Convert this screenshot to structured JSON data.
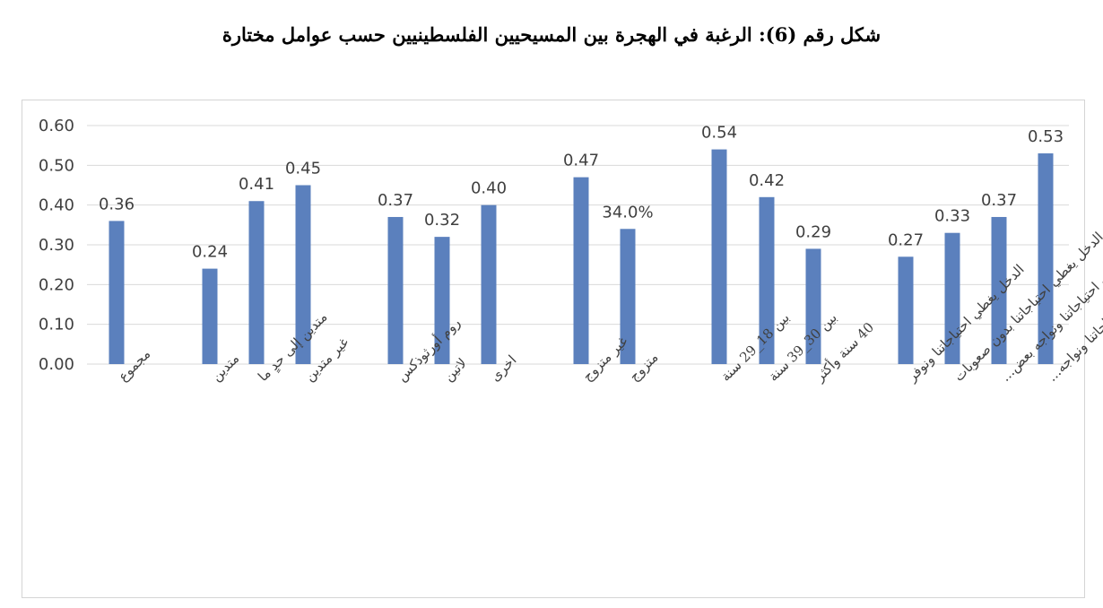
{
  "title": "شكل رقم (6): الرغبة في الهجرة بين المسيحيين الفلسطينيين حسب عوامل مختارة",
  "colors": {
    "bar": "#5b80bd",
    "grid": "#d9d9d9",
    "text": "#404040"
  },
  "chart_data": {
    "type": "bar",
    "title": "شكل رقم (6): الرغبة في الهجرة بين المسيحيين الفلسطينيين حسب عوامل مختارة",
    "ylim": [
      0,
      0.6
    ],
    "yticks": [
      "0.00",
      "0.10",
      "0.20",
      "0.30",
      "0.40",
      "0.50",
      "0.60"
    ],
    "grid": true,
    "legend": "none",
    "categories": [
      [
        "مجموع"
      ],
      [
        "متدين"
      ],
      [
        "متدين إلى حدٍ ما"
      ],
      [
        "غير متدين"
      ],
      [
        "روم أورثوذكس"
      ],
      [
        "لاتين"
      ],
      [
        "اخرى"
      ],
      [
        "غير متزوج"
      ],
      [
        "متزوج"
      ],
      [
        "بين 18_29 سنة"
      ],
      [
        "بين 30_39 سنة"
      ],
      [
        "40 سنة وأكثر"
      ],
      [
        "الدخل يغطي احتياجاتنا ونوفر"
      ],
      [
        "الدخل يغطي احتياجاتنا بدون صعوبات"
      ],
      [
        "الدخل لا يغطي احتياجاتنا ونواجه بعض..."
      ],
      [
        "الدخل لا يغطي احتياجاتنا ونواجه..."
      ]
    ],
    "values": [
      0.36,
      0.24,
      0.41,
      0.45,
      0.37,
      0.32,
      0.4,
      0.47,
      0.34,
      0.54,
      0.42,
      0.29,
      0.27,
      0.33,
      0.37,
      0.53
    ],
    "value_labels": [
      "0.36",
      "0.24",
      "0.41",
      "0.45",
      "0.37",
      "0.32",
      "0.40",
      "0.47",
      "34.0%",
      "0.54",
      "0.42",
      "0.29",
      "0.27",
      "0.33",
      "0.37",
      "0.53"
    ]
  }
}
